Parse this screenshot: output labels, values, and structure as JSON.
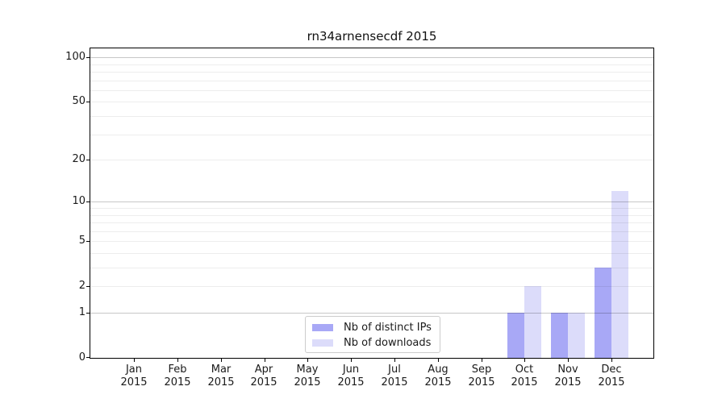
{
  "chart_data": {
    "type": "bar",
    "title": "rn34arnensecdf 2015",
    "year": "2015",
    "categories": [
      "Jan",
      "Feb",
      "Mar",
      "Apr",
      "May",
      "Jun",
      "Jul",
      "Aug",
      "Sep",
      "Oct",
      "Nov",
      "Dec"
    ],
    "series": [
      {
        "name": "Nb of distinct IPs",
        "color": "#a8a8f6",
        "values": [
          0,
          0,
          0,
          0,
          0,
          0,
          0,
          0,
          0,
          1,
          1,
          3
        ]
      },
      {
        "name": "Nb of downloads",
        "color": "#dcdcfa",
        "values": [
          0,
          0,
          0,
          0,
          0,
          0,
          0,
          0,
          0,
          2,
          1,
          12
        ]
      }
    ],
    "yscale": "log1p",
    "ylabel": "",
    "xlabel": "",
    "yticks": [
      0,
      1,
      2,
      5,
      10,
      20,
      50,
      100
    ],
    "ylim": [
      0,
      115
    ],
    "grid": {
      "major": [
        1,
        10,
        100
      ],
      "minor": [
        2,
        3,
        4,
        5,
        6,
        7,
        8,
        9,
        20,
        30,
        40,
        50,
        60,
        70,
        80,
        90
      ]
    },
    "legend_position": "lower center"
  }
}
